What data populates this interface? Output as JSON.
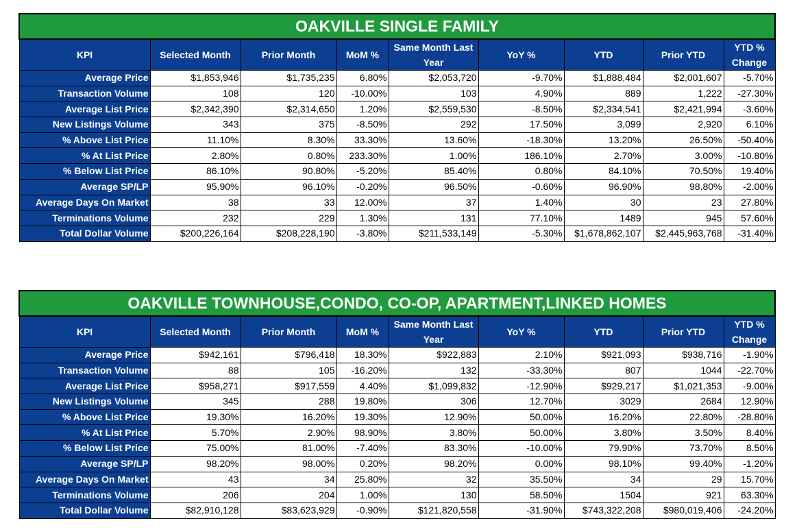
{
  "tables": [
    {
      "title": "OAKVILLE SINGLE FAMILY",
      "header": [
        "KPI",
        "Selected Month",
        "Prior Month",
        "MoM %",
        "Same Month Last Year",
        "YoY %",
        "YTD",
        "Prior YTD",
        "YTD % Change"
      ],
      "rows": [
        [
          "Average Price",
          "$1,853,946",
          "$1,735,235",
          "6.80%",
          "$2,053,720",
          "-9.70%",
          "$1,888,484",
          "$2,001,607",
          "-5.70%"
        ],
        [
          "Transaction Volume",
          "108",
          "120",
          "-10.00%",
          "103",
          "4.90%",
          "889",
          "1,222",
          "-27.30%"
        ],
        [
          "Average List Price",
          "$2,342,390",
          "$2,314,650",
          "1.20%",
          "$2,559,530",
          "-8.50%",
          "$2,334,541",
          "$2,421,994",
          "-3.60%"
        ],
        [
          "New Listings Volume",
          "343",
          "375",
          "-8.50%",
          "292",
          "17.50%",
          "3,099",
          "2,920",
          "6.10%"
        ],
        [
          "% Above List Price",
          "11.10%",
          "8.30%",
          "33.30%",
          "13.60%",
          "-18.30%",
          "13.20%",
          "26.50%",
          "-50.40%"
        ],
        [
          "% At List Price",
          "2.80%",
          "0.80%",
          "233.30%",
          "1.00%",
          "186.10%",
          "2.70%",
          "3.00%",
          "-10.80%"
        ],
        [
          "% Below List Price",
          "86.10%",
          "90.80%",
          "-5.20%",
          "85.40%",
          "0.80%",
          "84.10%",
          "70.50%",
          "19.40%"
        ],
        [
          "Average SP/LP",
          "95.90%",
          "96.10%",
          "-0.20%",
          "96.50%",
          "-0.60%",
          "96.90%",
          "98.80%",
          "-2.00%"
        ],
        [
          "Average Days On Market",
          "38",
          "33",
          "12.00%",
          "37",
          "1.40%",
          "30",
          "23",
          "27.80%"
        ],
        [
          "Terminations Volume",
          "232",
          "229",
          "1.30%",
          "131",
          "77.10%",
          "1489",
          "945",
          "57.60%"
        ],
        [
          "Total Dollar Volume",
          "$200,226,164",
          "$208,228,190",
          "-3.80%",
          "$211,533,149",
          "-5.30%",
          "$1,678,862,107",
          "$2,445,963,768",
          "-31.40%"
        ]
      ]
    },
    {
      "title": "OAKVILLE TOWNHOUSE,CONDO, CO-OP, APARTMENT,LINKED HOMES",
      "header": [
        "KPI",
        "Selected Month",
        "Prior Month",
        "MoM %",
        "Same Month Last Year",
        "YoY %",
        "YTD",
        "Prior YTD",
        "YTD % Change"
      ],
      "rows": [
        [
          "Average Price",
          "$942,161",
          "$796,418",
          "18.30%",
          "$922,883",
          "2.10%",
          "$921,093",
          "$938,716",
          "-1.90%"
        ],
        [
          "Transaction Volume",
          "88",
          "105",
          "-16.20%",
          "132",
          "-33.30%",
          "807",
          "1044",
          "-22.70%"
        ],
        [
          "Average List Price",
          "$958,271",
          "$917,559",
          "4.40%",
          "$1,099,832",
          "-12.90%",
          "$929,217",
          "$1,021,353",
          "-9.00%"
        ],
        [
          "New Listings Volume",
          "345",
          "288",
          "19.80%",
          "306",
          "12.70%",
          "3029",
          "2684",
          "12.90%"
        ],
        [
          "% Above List Price",
          "19.30%",
          "16.20%",
          "19.30%",
          "12.90%",
          "50.00%",
          "16.20%",
          "22.80%",
          "-28.80%"
        ],
        [
          "% At List Price",
          "5.70%",
          "2.90%",
          "98.90%",
          "3.80%",
          "50.00%",
          "3.80%",
          "3.50%",
          "8.40%"
        ],
        [
          "% Below List Price",
          "75.00%",
          "81.00%",
          "-7.40%",
          "83.30%",
          "-10.00%",
          "79.90%",
          "73.70%",
          "8.50%"
        ],
        [
          "Average SP/LP",
          "98.20%",
          "98.00%",
          "0.20%",
          "98.20%",
          "0.00%",
          "98.10%",
          "99.40%",
          "-1.20%"
        ],
        [
          "Average Days On Market",
          "43",
          "34",
          "25.80%",
          "32",
          "35.50%",
          "34",
          "29",
          "15.70%"
        ],
        [
          "Terminations Volume",
          "206",
          "204",
          "1.00%",
          "130",
          "58.50%",
          "1504",
          "921",
          "63.30%"
        ],
        [
          "Total Dollar Volume",
          "$82,910,128",
          "$83,623,929",
          "-0.90%",
          "$121,820,558",
          "-31.90%",
          "$743,322,208",
          "$980,019,406",
          "-24.20%"
        ]
      ]
    }
  ]
}
